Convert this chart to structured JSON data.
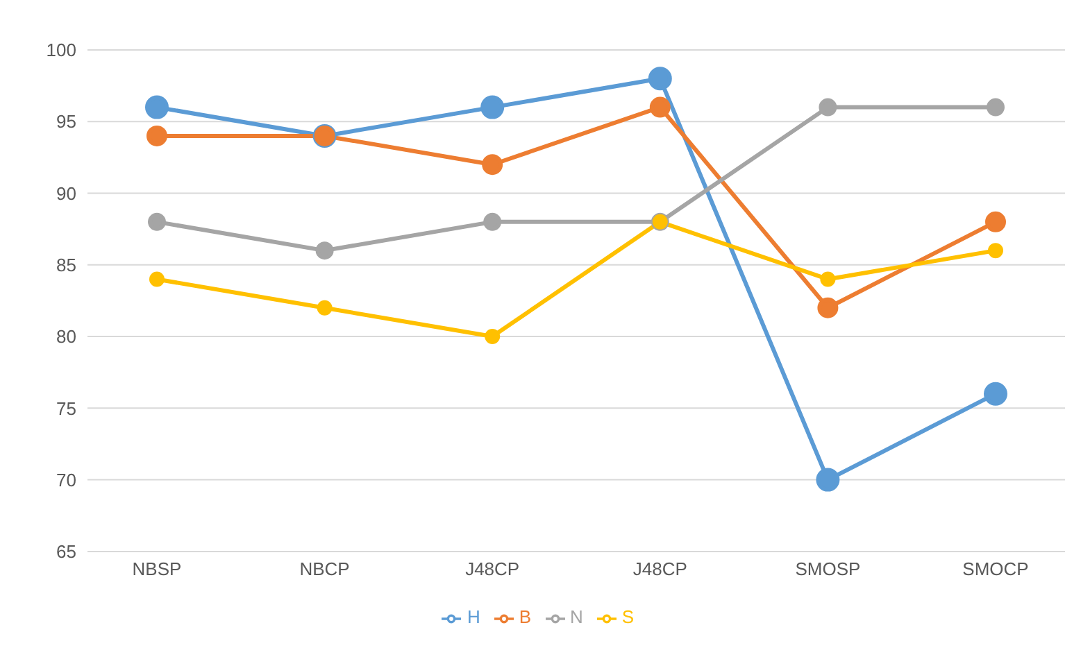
{
  "chart_data": {
    "type": "line",
    "categories": [
      "NBSP",
      "NBCP",
      "J48CP",
      "J48CP",
      "SMOSP",
      "SMOCP"
    ],
    "series": [
      {
        "name": "H",
        "color": "#5b9bd5",
        "values": [
          96,
          94,
          96,
          98,
          70,
          76
        ]
      },
      {
        "name": "B",
        "color": "#ed7d31",
        "values": [
          94,
          94,
          92,
          96,
          82,
          88
        ]
      },
      {
        "name": "N",
        "color": "#a5a5a5",
        "values": [
          88,
          86,
          88,
          88,
          96,
          96
        ]
      },
      {
        "name": "S",
        "color": "#ffc000",
        "values": [
          84,
          82,
          80,
          88,
          84,
          86
        ]
      }
    ],
    "ylim": [
      65,
      100
    ],
    "yticks": [
      65,
      70,
      75,
      80,
      85,
      90,
      95,
      100
    ],
    "grid": "y",
    "legend": "bottom",
    "marker": "circle"
  }
}
